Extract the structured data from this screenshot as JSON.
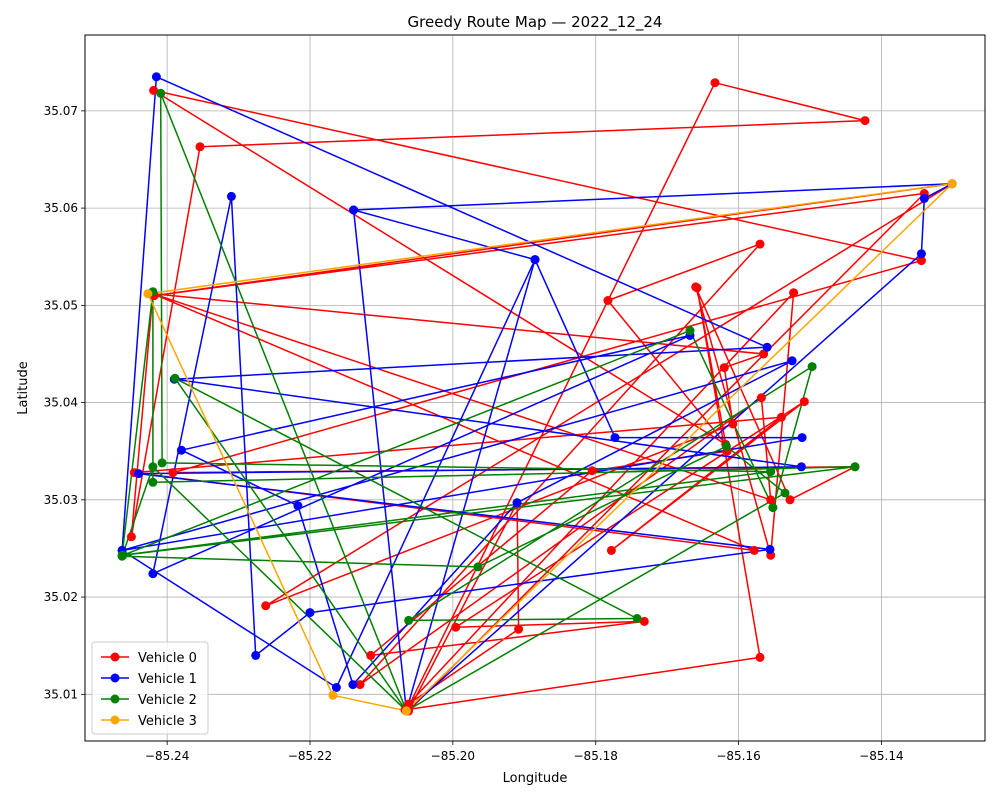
{
  "chart_data": {
    "type": "line",
    "title": "Greedy Route Map — 2022_12_24",
    "xlabel": "Longitude",
    "ylabel": "Latitude",
    "xlim": [
      -85.2515,
      -85.1255
    ],
    "ylim": [
      35.0052,
      35.0778
    ],
    "xticks": [
      -85.24,
      -85.22,
      -85.2,
      -85.18,
      -85.16,
      -85.14
    ],
    "xtick_labels": [
      "−85.24",
      "−85.22",
      "−85.20",
      "−85.18",
      "−85.16",
      "−85.14"
    ],
    "yticks": [
      35.01,
      35.02,
      35.03,
      35.04,
      35.05,
      35.06,
      35.07
    ],
    "ytick_labels": [
      "35.01",
      "35.02",
      "35.03",
      "35.04",
      "35.05",
      "35.06",
      "35.07"
    ],
    "grid": true,
    "legend_position": "lower-left",
    "series": [
      {
        "name": "Vehicle 0",
        "color": "#ff0000",
        "points": [
          [
            -85.2065,
            35.0083
          ],
          [
            -85.1633,
            35.0729
          ],
          [
            -85.1423,
            35.069
          ],
          [
            -85.2354,
            35.0663
          ],
          [
            -85.245,
            35.0262
          ],
          [
            -85.242,
            35.0512
          ],
          [
            -85.1555,
            35.03
          ],
          [
            -85.1568,
            35.0405
          ],
          [
            -85.213,
            35.011
          ],
          [
            -85.157,
            35.0563
          ],
          [
            -85.1783,
            35.0505
          ],
          [
            -85.1618,
            35.0357
          ],
          [
            -85.2419,
            35.0721
          ],
          [
            -85.1344,
            35.0546
          ],
          [
            -85.2392,
            35.0328
          ],
          [
            -85.1437,
            35.0334
          ],
          [
            -85.1528,
            35.03
          ],
          [
            -85.166,
            35.0519
          ],
          [
            -85.1555,
            35.0243
          ],
          [
            -85.1523,
            35.0513
          ],
          [
            -85.2062,
            35.009
          ],
          [
            -85.1908,
            35.0167
          ],
          [
            -85.191,
            35.0297
          ],
          [
            -85.2062,
            35.0083
          ],
          [
            -85.134,
            35.0615
          ],
          [
            -85.2418,
            35.051
          ],
          [
            -85.1301,
            35.0625
          ],
          [
            -85.2262,
            35.0191
          ],
          [
            -85.1608,
            35.0378
          ],
          [
            -85.162,
            35.0436
          ],
          [
            -85.1565,
            35.045
          ],
          [
            -85.242,
            35.0512
          ],
          [
            -85.1578,
            35.0248
          ],
          [
            -85.2446,
            35.0328
          ],
          [
            -85.154,
            35.0385
          ],
          [
            -85.1778,
            35.0248
          ],
          [
            -85.1508,
            35.0401
          ],
          [
            -85.1996,
            35.0169
          ],
          [
            -85.1732,
            35.0175
          ],
          [
            -85.2115,
            35.014
          ],
          [
            -85.1805,
            35.033
          ],
          [
            -85.1616,
            35.035
          ],
          [
            -85.1658,
            35.0518
          ],
          [
            -85.157,
            35.0138
          ],
          [
            -85.2067,
            35.0084
          ]
        ]
      },
      {
        "name": "Vehicle 1",
        "color": "#0000ff",
        "points": [
          [
            -85.2065,
            35.0083
          ],
          [
            -85.2139,
            35.0598
          ],
          [
            -85.1885,
            35.0547
          ],
          [
            -85.1773,
            35.0364
          ],
          [
            -85.1511,
            35.0364
          ],
          [
            -85.2463,
            35.0248
          ],
          [
            -85.2415,
            35.0735
          ],
          [
            -85.156,
            35.0457
          ],
          [
            -85.239,
            35.0424
          ],
          [
            -85.1512,
            35.0334
          ],
          [
            -85.244,
            35.0327
          ],
          [
            -85.1556,
            35.0249
          ],
          [
            -85.22,
            35.0184
          ],
          [
            -85.2276,
            35.014
          ],
          [
            -85.231,
            35.0612
          ],
          [
            -85.242,
            35.0224
          ],
          [
            -85.1668,
            35.0469
          ],
          [
            -85.238,
            35.0351
          ],
          [
            -85.2217,
            35.0294
          ],
          [
            -85.214,
            35.011
          ],
          [
            -85.191,
            35.0297
          ],
          [
            -85.1525,
            35.0443
          ],
          [
            -85.2463,
            35.0248
          ],
          [
            -85.2163,
            35.0107
          ],
          [
            -85.1885,
            35.0547
          ],
          [
            -85.2065,
            35.0083
          ],
          [
            -85.1344,
            35.0553
          ],
          [
            -85.134,
            35.061
          ],
          [
            -85.1301,
            35.0625
          ],
          [
            -85.2139,
            35.0598
          ],
          [
            -85.2065,
            35.0083
          ]
        ]
      },
      {
        "name": "Vehicle 2",
        "color": "#008000",
        "points": [
          [
            -85.2065,
            35.0083
          ],
          [
            -85.2409,
            35.0718
          ],
          [
            -85.2407,
            35.0338
          ],
          [
            -85.1555,
            35.0329
          ],
          [
            -85.2463,
            35.0243
          ],
          [
            -85.242,
            35.0514
          ],
          [
            -85.242,
            35.0318
          ],
          [
            -85.1437,
            35.0334
          ],
          [
            -85.2462,
            35.0243
          ],
          [
            -85.1668,
            35.0474
          ],
          [
            -85.1552,
            35.0292
          ],
          [
            -85.1497,
            35.0437
          ],
          [
            -85.2062,
            35.0176
          ],
          [
            -85.1742,
            35.0178
          ],
          [
            -85.2389,
            35.0425
          ],
          [
            -85.2065,
            35.0083
          ],
          [
            -85.242,
            35.0334
          ],
          [
            -85.2463,
            35.0242
          ],
          [
            -85.1965,
            35.0231
          ],
          [
            -85.1617,
            35.0355
          ],
          [
            -85.1535,
            35.0307
          ],
          [
            -85.2065,
            35.0083
          ]
        ]
      },
      {
        "name": "Vehicle 3",
        "color": "#ffa500",
        "points": [
          [
            -85.2065,
            35.0083
          ],
          [
            -85.1301,
            35.0625
          ],
          [
            -85.2427,
            35.0512
          ],
          [
            -85.2168,
            35.0099
          ],
          [
            -85.2065,
            35.0083
          ]
        ]
      }
    ]
  }
}
